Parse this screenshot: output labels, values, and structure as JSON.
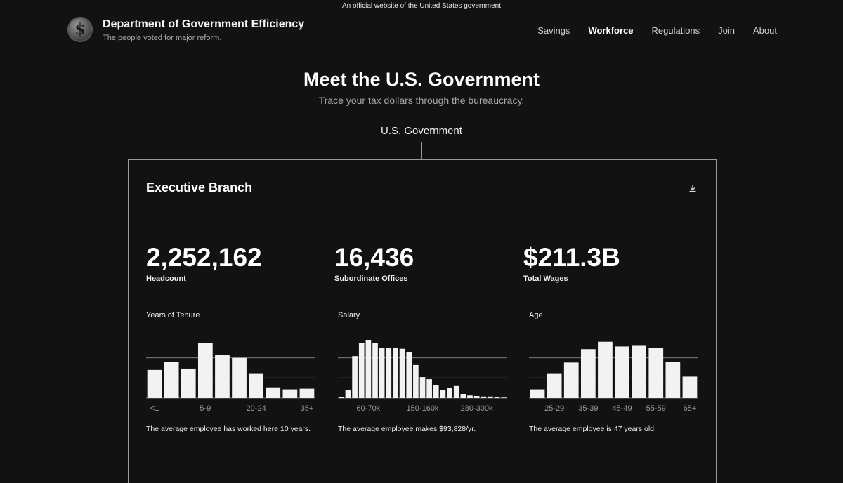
{
  "banner": {
    "text": "An official website of the United States government"
  },
  "header": {
    "logo_glyph": "$",
    "title": "Department of Government Efficiency",
    "subtitle": "The people voted for major reform.",
    "nav": [
      {
        "label": "Savings",
        "active": false
      },
      {
        "label": "Workforce",
        "active": true
      },
      {
        "label": "Regulations",
        "active": false
      },
      {
        "label": "Join",
        "active": false
      },
      {
        "label": "About",
        "active": false
      }
    ]
  },
  "hero": {
    "title": "Meet the U.S. Government",
    "subtitle": "Trace your tax dollars through the bureaucracy."
  },
  "tree": {
    "root_label": "U.S. Government"
  },
  "card": {
    "title": "Executive Branch",
    "download_icon": "download-icon",
    "stats": [
      {
        "value": "2,252,162",
        "label": "Headcount"
      },
      {
        "value": "16,436",
        "label": "Subordinate Offices"
      },
      {
        "value": "$211.3B",
        "label": "Total Wages"
      }
    ]
  },
  "colors": {
    "background": "#121212",
    "bar": "#f2f2f2",
    "gridline": "#8a8a8a",
    "tick_label": "#9a9a9a"
  },
  "chart_data": [
    {
      "type": "bar",
      "title": "Years of Tenure",
      "tick_labels": [
        "<1",
        "5-9",
        "20-24",
        "35+"
      ],
      "values": [
        4.2,
        5.4,
        4.4,
        8.2,
        6.4,
        6.0,
        3.6,
        1.6,
        1.3,
        1.4
      ],
      "ylim": [
        0,
        9
      ],
      "grid": true,
      "caption": "The average employee has worked here 10 years."
    },
    {
      "type": "bar",
      "title": "Salary",
      "tick_labels": [
        "60-70k",
        "150-160k",
        "280-300k"
      ],
      "values": [
        0.2,
        1.5,
        8.0,
        10.5,
        11.0,
        10.5,
        9.6,
        9.6,
        9.6,
        9.4,
        8.7,
        6.3,
        4.0,
        3.6,
        2.5,
        1.5,
        2.0,
        2.3,
        0.8,
        0.5,
        0.4,
        0.3,
        0.3,
        0.2,
        0.1
      ],
      "ylim": [
        0,
        11.5
      ],
      "grid": true,
      "caption": "The average employee makes $93,828/yr."
    },
    {
      "type": "bar",
      "title": "Age",
      "tick_labels": [
        "25-29",
        "35-39",
        "45-49",
        "55-59",
        "65+"
      ],
      "values": [
        1.3,
        3.6,
        5.3,
        7.3,
        8.4,
        7.7,
        7.8,
        7.5,
        5.4,
        3.2
      ],
      "ylim": [
        0,
        9
      ],
      "grid": true,
      "caption": "The average employee is 47 years old."
    }
  ]
}
